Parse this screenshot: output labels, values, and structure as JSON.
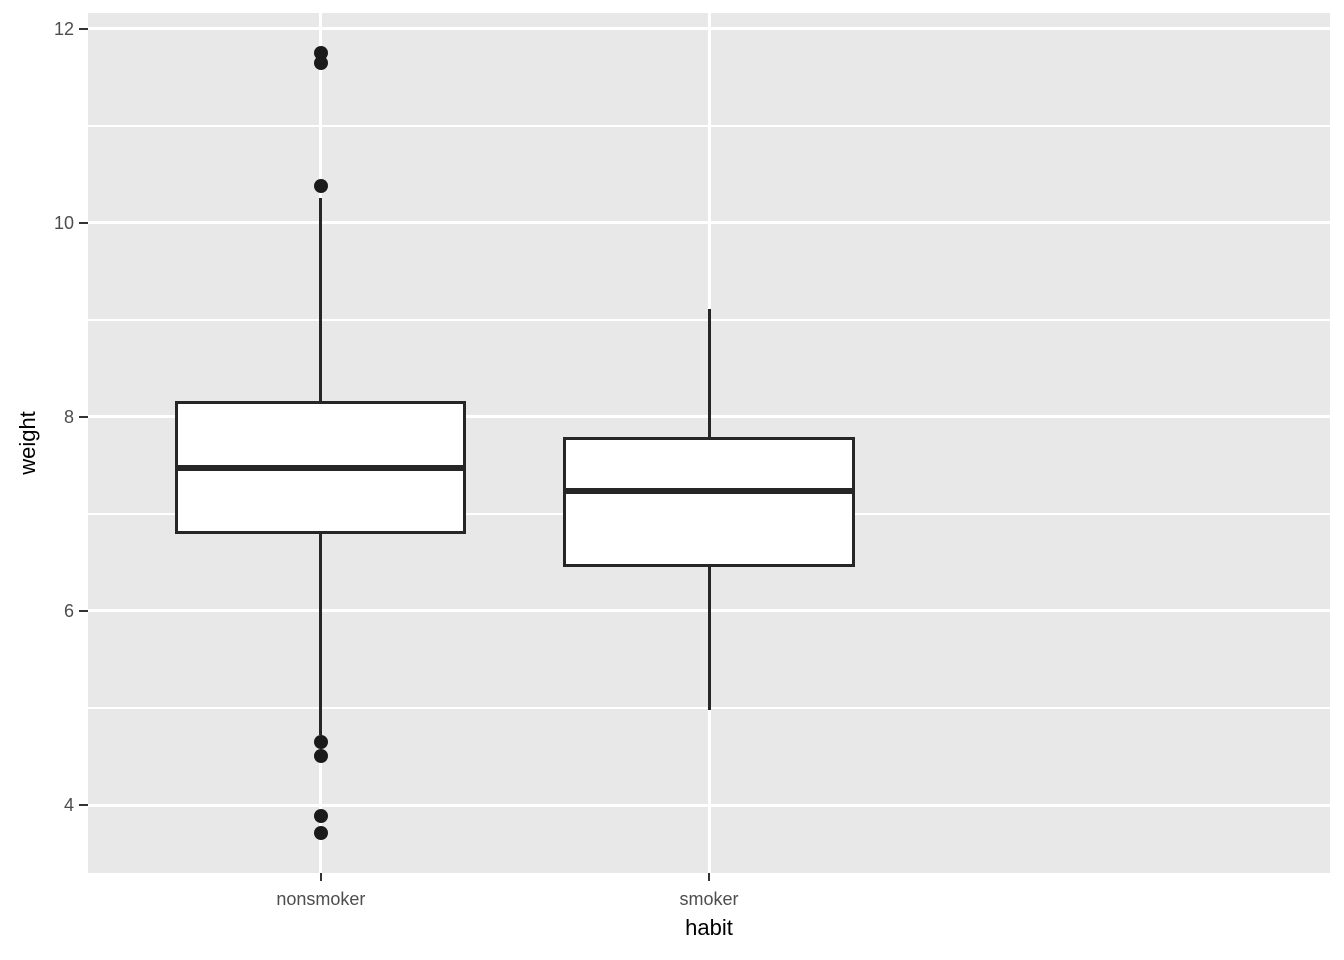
{
  "figure": {
    "background": "#FFFFFF",
    "panel_background": "#E8E8E8",
    "grid_color": "#FFFFFF",
    "box_fill": "#FFFFFF",
    "box_stroke": "#262626",
    "outlier_color": "#1A1A1A",
    "tick_mark_color": "#333333",
    "tick_label_color": "#4D4D4D",
    "axis_title_color": "#000000"
  },
  "chart_data": {
    "type": "boxplot",
    "title": "",
    "xlabel": "habit",
    "ylabel": "weight",
    "categories": [
      "nonsmoker",
      "smoker"
    ],
    "series": [
      {
        "name": "nonsmoker",
        "whisker_low": 4.72,
        "q1": 6.79,
        "median": 7.47,
        "q3": 8.16,
        "whisker_high": 10.25,
        "outliers": [
          11.75,
          11.64,
          10.38,
          4.65,
          4.51,
          3.89,
          3.71
        ]
      },
      {
        "name": "smoker",
        "whisker_low": 4.98,
        "q1": 6.45,
        "median": 7.24,
        "q3": 7.79,
        "whisker_high": 9.11,
        "outliers": []
      }
    ],
    "ylim": [
      3.3,
      12.16
    ],
    "yticks_major": [
      4,
      6,
      8,
      10,
      12
    ],
    "yticks_minor": [
      5,
      7,
      9,
      11
    ],
    "grid": "on",
    "legend": "none",
    "box_width_units": 0.75,
    "discrete_expand": 0.6
  }
}
